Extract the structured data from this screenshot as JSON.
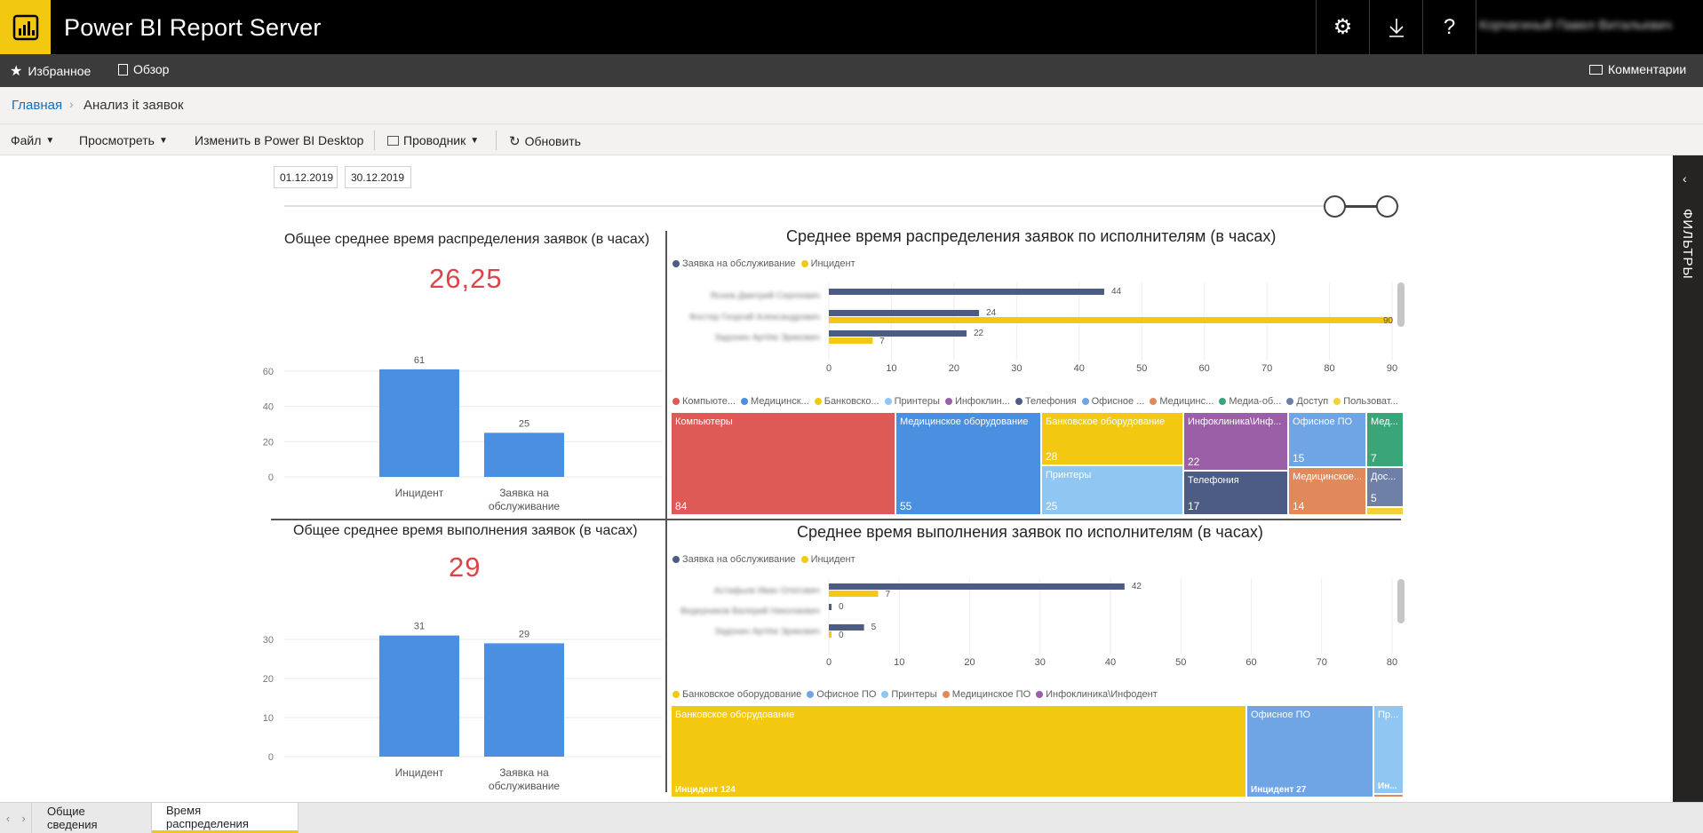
{
  "header": {
    "title": "Power BI Report Server",
    "user": "Корчагиный Павел Витальевич"
  },
  "subnav": {
    "favorites": "Избранное",
    "browse": "Обзор",
    "comments": "Комментарии"
  },
  "breadcrumb": {
    "home": "Главная",
    "current": "Анализ it заявок"
  },
  "toolbar": {
    "file": "Файл",
    "view": "Просмотреть",
    "edit": "Изменить в Power BI Desktop",
    "explorer": "Проводник",
    "refresh": "Обновить"
  },
  "filters_label": "ФИЛЬТРЫ",
  "tabs": [
    "Общие сведения",
    "Время распределения"
  ],
  "slicer": {
    "from": "01.12.2019",
    "to": "30.12.2019"
  },
  "colors": {
    "blue": "#4A8FE0",
    "navy": "#4C5C85",
    "yellow": "#F2C811",
    "red": "#E0424A"
  },
  "chart_data": [
    {
      "type": "bar",
      "title": "Общее среднее время распределения заявок (в часах)",
      "card_value": "26,25",
      "categories": [
        "Инцидент",
        "Заявка на обслуживание"
      ],
      "values": [
        61,
        25
      ],
      "ylim": [
        0,
        70
      ],
      "yticks": [
        0,
        20,
        40,
        60
      ]
    },
    {
      "type": "bar",
      "orientation": "horizontal",
      "title": "Среднее время распределения заявок по исполнителям (в часах)",
      "legend": [
        "Заявка на обслуживание",
        "Инцидент"
      ],
      "categories": [
        "Яснев Дмитрий Сергеевич",
        "Фостер Георгий Александрович",
        "Задонин Артём Эрикович"
      ],
      "series": [
        {
          "name": "Заявка на обслуживание",
          "values": [
            44,
            24,
            22
          ]
        },
        {
          "name": "Инцидент",
          "values": [
            null,
            90,
            7
          ]
        }
      ],
      "xlim": [
        0,
        90
      ],
      "xticks": [
        0,
        10,
        20,
        30,
        40,
        50,
        60,
        70,
        80,
        90
      ]
    },
    {
      "type": "treemap",
      "legend": [
        "Компьюте...",
        "Медицинск...",
        "Банковско...",
        "Принтеры",
        "Инфоклин...",
        "Телефония",
        "Офисное ...",
        "Медицинс...",
        "Медиа-об...",
        "Доступ",
        "Пользоват..."
      ],
      "items": [
        {
          "label": "Компьютеры",
          "value": 84
        },
        {
          "label": "Медицинское оборудование",
          "value": 55
        },
        {
          "label": "Банковское оборудование",
          "value": 28
        },
        {
          "label": "Принтеры",
          "value": 25
        },
        {
          "label": "Инфоклиника\\Инф...",
          "value": 22
        },
        {
          "label": "Телефония",
          "value": 17
        },
        {
          "label": "Офисное ПО",
          "value": 15
        },
        {
          "label": "Медицинское...",
          "value": 14
        },
        {
          "label": "Мед...",
          "value": 7
        },
        {
          "label": "Дос...",
          "value": 5
        }
      ]
    },
    {
      "type": "bar",
      "title": "Общее среднее время выполнения заявок (в часах)",
      "card_value": "29",
      "categories": [
        "Инцидент",
        "Заявка на обслуживание"
      ],
      "values": [
        31,
        29
      ],
      "ylim": [
        0,
        35
      ],
      "yticks": [
        0,
        10,
        20,
        30
      ]
    },
    {
      "type": "bar",
      "orientation": "horizontal",
      "title": "Среднее время выполнения заявок по исполнителям (в часах)",
      "legend": [
        "Заявка на обслуживание",
        "Инцидент"
      ],
      "categories": [
        "Астафьев Иван Олегович",
        "Ведерников Валерий Николаевич",
        "Задонин Артём Эрикович"
      ],
      "series": [
        {
          "name": "Заявка на обслуживание",
          "values": [
            42,
            0,
            5
          ]
        },
        {
          "name": "Инцидент",
          "values": [
            7,
            null,
            0
          ]
        }
      ],
      "xlim": [
        0,
        80
      ],
      "xticks": [
        0,
        10,
        20,
        30,
        40,
        50,
        60,
        70,
        80
      ]
    },
    {
      "type": "treemap",
      "legend": [
        "Банковское оборудование",
        "Офисное ПО",
        "Принтеры",
        "Медицинское ПО",
        "Инфоклиника\\Инфодент"
      ],
      "items": [
        {
          "label": "Банковское оборудование",
          "sublabel": "Инцидент 124"
        },
        {
          "label": "Офисное ПО",
          "sublabel": "Инцидент 27"
        },
        {
          "label": "Пр...",
          "sublabel": "Ин..."
        }
      ]
    }
  ]
}
